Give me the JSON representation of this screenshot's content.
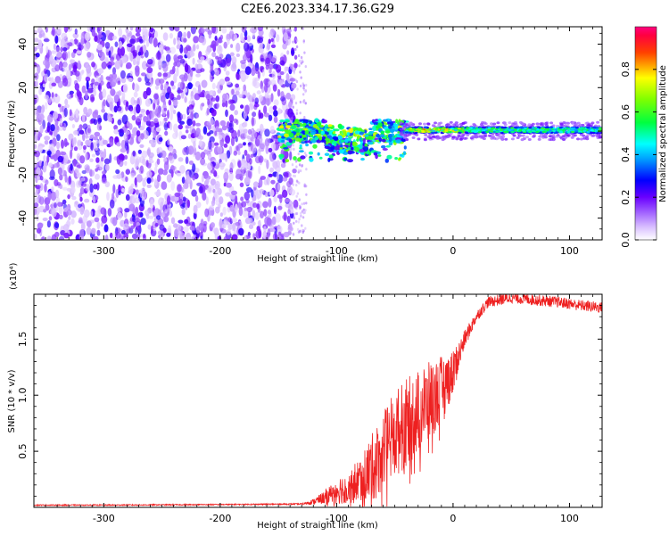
{
  "chart_data": [
    {
      "type": "heatmap",
      "title": "C2E6.2023.334.17.36.G29",
      "xlabel": "Height of straight line (km)",
      "ylabel": "Frequency (Hz)",
      "xlim": [
        -360,
        128
      ],
      "ylim": [
        -50,
        48
      ],
      "x_ticks": [
        -300,
        -200,
        -100,
        0,
        100
      ],
      "x_tick_labels": [
        "-300",
        "-200",
        "-100",
        "0",
        "100"
      ],
      "y_ticks": [
        -40,
        -20,
        0,
        20,
        40
      ],
      "y_tick_labels": [
        "-40",
        "-20",
        "0",
        "20",
        "40"
      ],
      "colorbar": {
        "label": "Normalized spectral amplitude",
        "range": [
          0,
          1
        ],
        "ticks": [
          0.0,
          0.2,
          0.4,
          0.6,
          0.8
        ],
        "tick_labels": [
          "0.0",
          "0.2",
          "0.4",
          "0.6",
          "0.8"
        ],
        "colormap": [
          "#ffffff",
          "#c8a0ff",
          "#7a00ff",
          "#0000ff",
          "#00ffff",
          "#00ff00",
          "#ffff00",
          "#ff0000",
          "#ff0080"
        ]
      },
      "regions": [
        {
          "x_range": [
            -360,
            -135
          ],
          "freq_range": [
            -50,
            48
          ],
          "amplitude": "0.1-0.3",
          "pattern": "broadband noise"
        },
        {
          "x_range": [
            -150,
            -40
          ],
          "freq_range": [
            -15,
            10
          ],
          "amplitude": "0.2-0.7",
          "pattern": "scattered signal"
        },
        {
          "x_range": [
            -40,
            128
          ],
          "freq_range": [
            -2,
            3
          ],
          "amplitude": "0.5-0.9",
          "pattern": "narrow band near 0 Hz"
        }
      ],
      "grid": false
    },
    {
      "type": "line",
      "xlabel": "Height of straight line (km)",
      "ylabel": "SNR (10 * v/v)",
      "y_multiplier_label": "(x10⁴)",
      "xlim": [
        -360,
        128
      ],
      "ylim": [
        0,
        19000
      ],
      "x_ticks": [
        -300,
        -200,
        -100,
        0,
        100
      ],
      "x_tick_labels": [
        "-300",
        "-200",
        "-100",
        "0",
        "100"
      ],
      "y_ticks": [
        5000,
        10000,
        15000
      ],
      "y_tick_labels": [
        "0.5",
        "1.0",
        "1.5"
      ],
      "color": "#ee2020",
      "grid": false,
      "series": [
        {
          "x": [
            -360,
            -300,
            -200,
            -130,
            -120,
            -110,
            -100,
            -90,
            -80,
            -70,
            -60,
            -50,
            -40,
            -30,
            -20,
            -10,
            0,
            10,
            20,
            30,
            50,
            70,
            90,
            110,
            128
          ],
          "y": [
            200,
            200,
            250,
            300,
            500,
            900,
            1500,
            1800,
            2500,
            3500,
            5000,
            6500,
            7500,
            8500,
            9500,
            10500,
            12000,
            15000,
            17000,
            18300,
            18700,
            18500,
            18300,
            18000,
            17800
          ],
          "noise": [
            50,
            50,
            50,
            60,
            250,
            600,
            1200,
            1500,
            2000,
            3000,
            3500,
            4000,
            4000,
            3800,
            3500,
            3000,
            2000,
            800,
            500,
            500,
            500,
            500,
            500,
            500,
            500
          ]
        }
      ]
    }
  ]
}
